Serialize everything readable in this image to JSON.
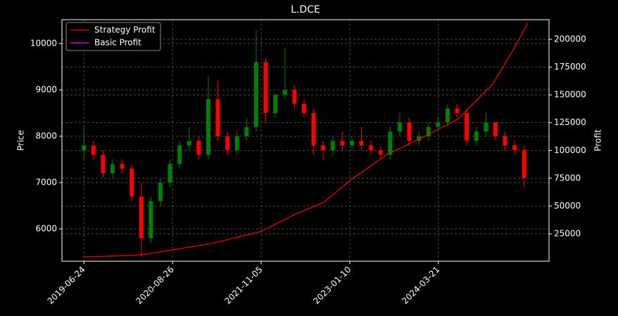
{
  "chart_data": {
    "type": "candlestick",
    "title": "L.DCE",
    "ylabel": "Price",
    "y2label": "Profit",
    "grid": true,
    "legend": "upper left",
    "xlim": [
      -62,
      1312
    ],
    "xticks": [
      {
        "value": 0,
        "label": "2019-06-24"
      },
      {
        "value": 250,
        "label": "2020-08-26"
      },
      {
        "value": 500,
        "label": "2021-11-05"
      },
      {
        "value": 750,
        "label": "2023-01-10"
      },
      {
        "value": 1000,
        "label": "2024-03-21"
      }
    ],
    "ylim": [
      5303,
      10515
    ],
    "yticks": [
      6000,
      7000,
      8000,
      9000,
      10000
    ],
    "y2lim": [
      360,
      217690
    ],
    "y2ticks": [
      25000,
      50000,
      75000,
      100000,
      125000,
      150000,
      175000,
      200000
    ],
    "candles": {
      "up_color": "#008000",
      "down_color": "#ff0000",
      "x": [
        0,
        27,
        54,
        81,
        108,
        135,
        162,
        189,
        216,
        243,
        270,
        297,
        324,
        351,
        378,
        405,
        432,
        459,
        486,
        513,
        540,
        567,
        594,
        621,
        648,
        675,
        702,
        729,
        756,
        783,
        810,
        837,
        864,
        891,
        918,
        945,
        972,
        999,
        1026,
        1053,
        1080,
        1107,
        1134,
        1161,
        1188,
        1215,
        1242
      ],
      "open": [
        7700,
        7800,
        7600,
        7200,
        7400,
        7300,
        6700,
        5800,
        6600,
        7000,
        7400,
        7800,
        7900,
        7600,
        8800,
        8000,
        7700,
        8000,
        8200,
        9600,
        8500,
        8900,
        9000,
        8700,
        8500,
        7800,
        7700,
        7900,
        7800,
        7900,
        7800,
        7700,
        7600,
        8100,
        8300,
        7900,
        8000,
        8200,
        8300,
        8600,
        8500,
        7900,
        8100,
        8300,
        8000,
        7800,
        7700
      ],
      "high": [
        8200,
        7900,
        7700,
        7500,
        7500,
        7400,
        7000,
        6700,
        7100,
        7500,
        7900,
        8200,
        8000,
        9300,
        9200,
        8100,
        8100,
        8400,
        10300,
        9700,
        8900,
        9900,
        9100,
        8800,
        8600,
        7900,
        8000,
        8100,
        8000,
        8200,
        7900,
        7800,
        8200,
        8500,
        8400,
        8100,
        8300,
        8400,
        8700,
        8700,
        8600,
        8200,
        8500,
        8300,
        8100,
        7900,
        7800
      ],
      "low": [
        7500,
        7500,
        7100,
        7100,
        7200,
        6600,
        5400,
        5700,
        6500,
        6900,
        7300,
        7700,
        7500,
        7500,
        7900,
        7600,
        7600,
        7900,
        8100,
        8300,
        8400,
        8800,
        8600,
        8400,
        7600,
        7500,
        7600,
        7700,
        7700,
        7700,
        7600,
        7500,
        7500,
        8000,
        7800,
        7800,
        7900,
        8100,
        8200,
        8400,
        7800,
        7800,
        8000,
        7900,
        7700,
        7600,
        6900
      ],
      "close": [
        7800,
        7600,
        7200,
        7400,
        7300,
        6700,
        5800,
        6600,
        7000,
        7400,
        7800,
        7900,
        7600,
        8800,
        8000,
        7700,
        8000,
        8200,
        9600,
        8500,
        8900,
        9000,
        8700,
        8500,
        7800,
        7700,
        7900,
        7800,
        7900,
        7800,
        7700,
        7600,
        8100,
        8300,
        7900,
        8000,
        8200,
        8300,
        8600,
        8500,
        7900,
        8100,
        8300,
        8000,
        7800,
        7700,
        7100
      ]
    },
    "series": [
      {
        "name": "Strategy Profit",
        "color": "#ff0000",
        "axis": "y2",
        "x": [
          0,
          161,
          260,
          359,
          498,
          597,
          677,
          756,
          855,
          954,
          1054,
          1153,
          1212,
          1252
        ],
        "values": [
          4150,
          6000,
          11100,
          16200,
          27000,
          42700,
          53400,
          74300,
          96400,
          111500,
          128000,
          159600,
          191000,
          214500
        ]
      },
      {
        "name": "Basic Profit",
        "color": "#ff00ff",
        "axis": "y2",
        "x": [],
        "values": []
      }
    ]
  }
}
